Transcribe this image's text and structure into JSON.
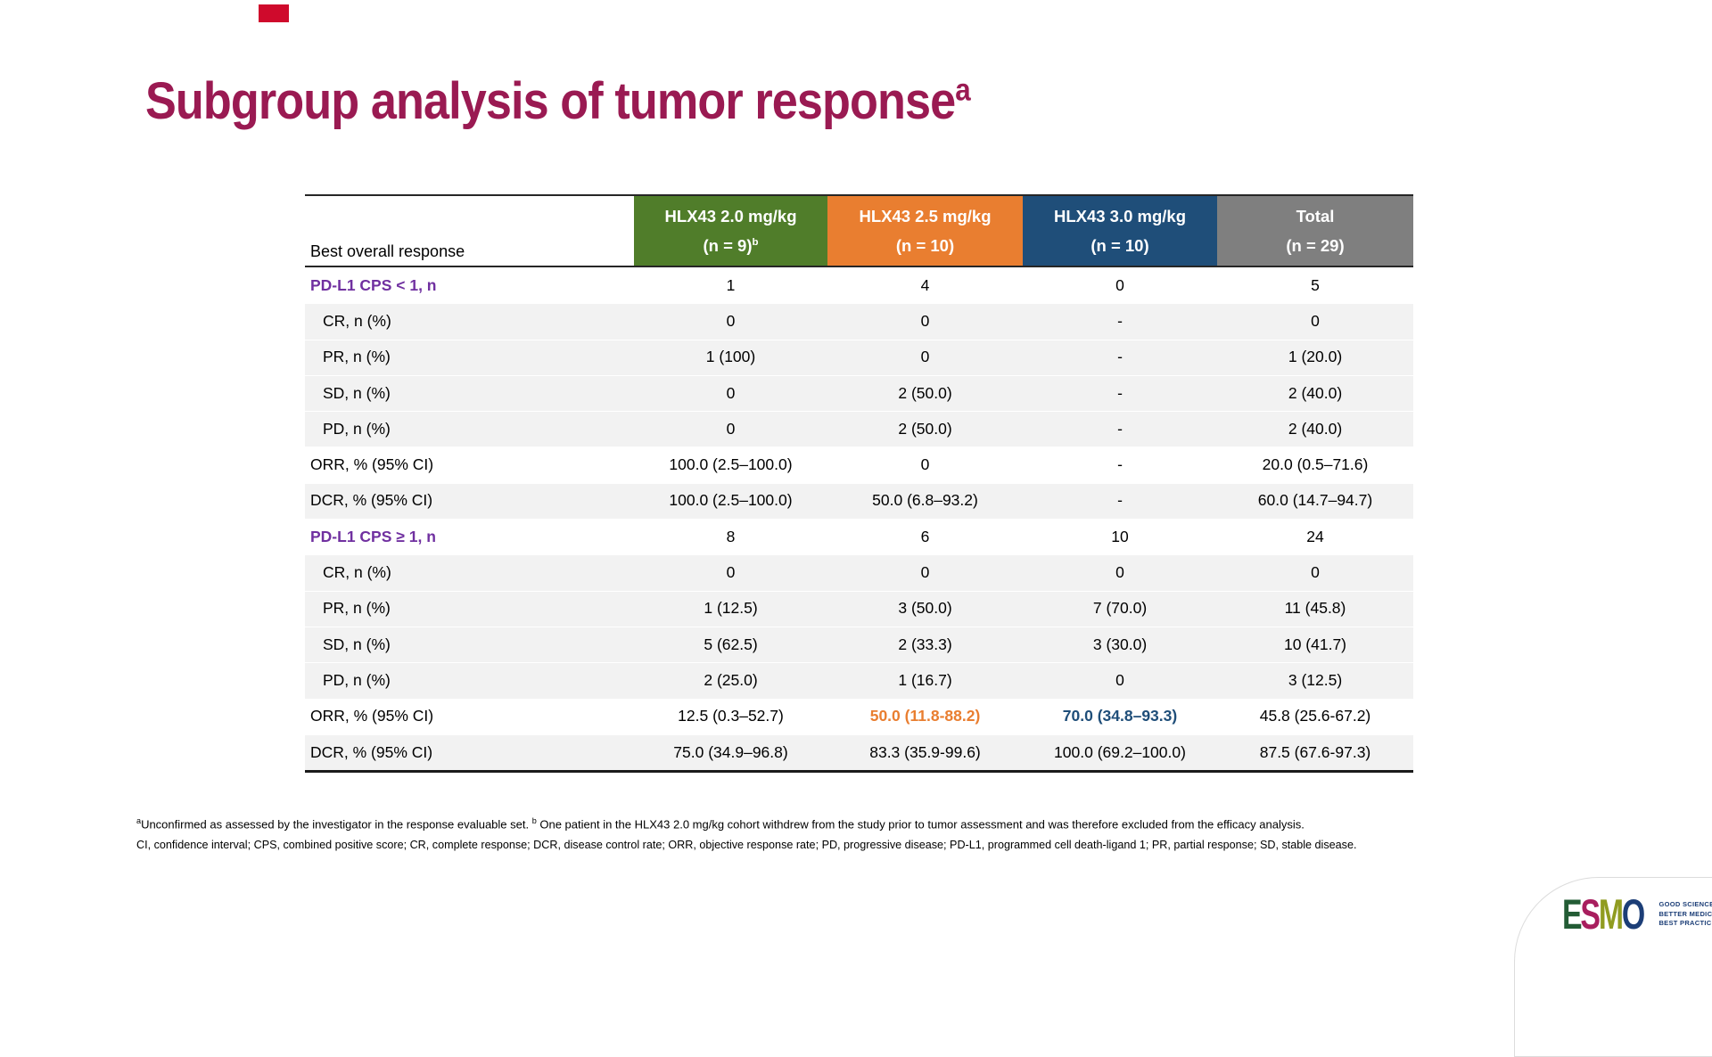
{
  "slide": {
    "title": "Subgroup analysis of tumor response",
    "title_sup": "a",
    "title_color": "#9a1a52",
    "corner_mark_color": "#cf0a2c"
  },
  "colors": {
    "header_green": "#507d2a",
    "header_orange": "#e97e30",
    "header_blue": "#1f4e79",
    "header_gray": "#7f7f7f",
    "row_shaded": "#f2f2f2",
    "category_purple": "#7030a0",
    "highlight_orange": "#e97e30",
    "highlight_blue": "#1f4e79"
  },
  "table": {
    "row_header": "Best overall response",
    "columns": [
      {
        "line1": "HLX43 2.0 mg/kg",
        "line2": "(n = 9)",
        "sup": "b",
        "bg": "#507d2a"
      },
      {
        "line1": "HLX43 2.5 mg/kg",
        "line2": "(n = 10)",
        "sup": "",
        "bg": "#e97e30"
      },
      {
        "line1": "HLX43 3.0 mg/kg",
        "line2": "(n = 10)",
        "sup": "",
        "bg": "#1f4e79"
      },
      {
        "line1": "Total",
        "line2": "(n = 29)",
        "sup": "",
        "bg": "#7f7f7f"
      }
    ],
    "rows": [
      {
        "label": "PD-L1 CPS < 1, n",
        "category": true,
        "shaded": false,
        "values": [
          "1",
          "4",
          "0",
          "5"
        ]
      },
      {
        "label": "CR, n (%)",
        "category": false,
        "shaded": true,
        "values": [
          "0",
          "0",
          "-",
          "0"
        ]
      },
      {
        "label": "PR, n (%)",
        "category": false,
        "shaded": true,
        "values": [
          "1 (100)",
          "0",
          "-",
          "1 (20.0)"
        ]
      },
      {
        "label": "SD, n (%)",
        "category": false,
        "shaded": true,
        "values": [
          "0",
          "2 (50.0)",
          "-",
          "2 (40.0)"
        ]
      },
      {
        "label": "PD, n (%)",
        "category": false,
        "shaded": true,
        "values": [
          "0",
          "2 (50.0)",
          "-",
          "2 (40.0)"
        ]
      },
      {
        "label": "ORR, % (95% CI)",
        "category": false,
        "shaded": false,
        "indent": false,
        "values": [
          "100.0 (2.5–100.0)",
          "0",
          "-",
          "20.0 (0.5–71.6)"
        ]
      },
      {
        "label": "DCR, % (95% CI)",
        "category": false,
        "shaded": true,
        "indent": false,
        "values": [
          "100.0 (2.5–100.0)",
          "50.0 (6.8–93.2)",
          "-",
          "60.0 (14.7–94.7)"
        ]
      },
      {
        "label": "PD-L1 CPS ≥ 1, n",
        "category": true,
        "shaded": false,
        "values": [
          "8",
          "6",
          "10",
          "24"
        ]
      },
      {
        "label": "CR, n (%)",
        "category": false,
        "shaded": true,
        "values": [
          "0",
          "0",
          "0",
          "0"
        ]
      },
      {
        "label": "PR, n (%)",
        "category": false,
        "shaded": true,
        "values": [
          "1 (12.5)",
          "3 (50.0)",
          "7 (70.0)",
          "11 (45.8)"
        ]
      },
      {
        "label": "SD, n (%)",
        "category": false,
        "shaded": true,
        "values": [
          "5 (62.5)",
          "2 (33.3)",
          "3 (30.0)",
          "10 (41.7)"
        ]
      },
      {
        "label": "PD, n (%)",
        "category": false,
        "shaded": true,
        "values": [
          "2 (25.0)",
          "1 (16.7)",
          "0",
          "3 (12.5)"
        ]
      },
      {
        "label": "ORR, % (95% CI)",
        "category": false,
        "shaded": false,
        "indent": false,
        "values": [
          "12.5 (0.3–52.7)",
          "50.0 (11.8-88.2)",
          "70.0 (34.8–93.3)",
          "45.8 (25.6-67.2)"
        ],
        "highlights": [
          "",
          "orange",
          "blue",
          ""
        ]
      },
      {
        "label": "DCR, % (95% CI)",
        "category": false,
        "shaded": true,
        "indent": false,
        "values": [
          "75.0 (34.9–96.8)",
          "83.3 (35.9-99.6)",
          "100.0 (69.2–100.0)",
          "87.5 (67.6-97.3)"
        ]
      }
    ]
  },
  "footnotes": {
    "sup_a": "a",
    "line1_a": "Unconfirmed as assessed by the investigator in the response evaluable set. ",
    "sup_b": "b",
    "line1_b": " One patient in the HLX43 2.0 mg/kg cohort withdrew from the study prior to tumor assessment and was therefore excluded from the efficacy analysis.",
    "line2": "CI, confidence interval; CPS, combined positive score; CR, complete response; DCR, disease control rate; ORR, objective response rate; PD, progressive disease; PD-L1, programmed cell death-ligand 1; PR, partial response; SD, stable disease."
  },
  "logo": {
    "letters": [
      {
        "ch": "E",
        "color": "#235c35"
      },
      {
        "ch": "S",
        "color": "#a81e5e"
      },
      {
        "ch": "M",
        "color": "#909c21"
      },
      {
        "ch": "O",
        "color": "#1c3e77"
      }
    ],
    "tagline": [
      "GOOD SCIENCE",
      "BETTER MEDICINE",
      "BEST PRACTICE"
    ],
    "tagline_color": "#1c3e77"
  }
}
